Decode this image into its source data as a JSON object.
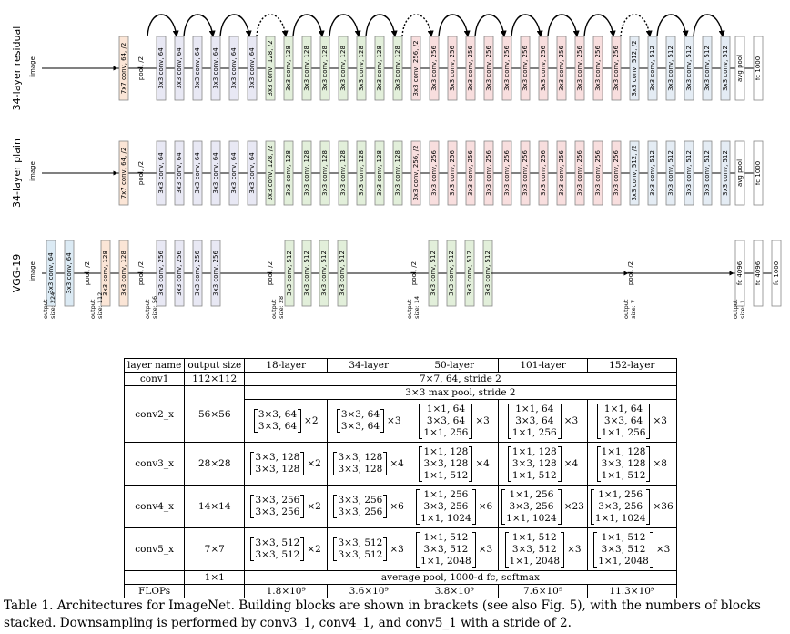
{
  "figure": {
    "labels": {
      "residual": "34-layer residual",
      "plain": "34-layer plain",
      "vgg": "VGG-19",
      "image": "image"
    },
    "residual_layers": [
      "7x7 conv, 64, /2",
      "pool, /2",
      "3x3 conv, 64",
      "3x3 conv, 64",
      "3x3 conv, 64",
      "3x3 conv, 64",
      "3x3 conv, 64",
      "3x3 conv, 64",
      "3x3 conv, 128, /2",
      "3x3 conv, 128",
      "3x3 conv, 128",
      "3x3 conv, 128",
      "3x3 conv, 128",
      "3x3 conv, 128",
      "3x3 conv, 128",
      "3x3 conv, 128",
      "3x3 conv, 256, /2",
      "3x3 conv, 256",
      "3x3 conv, 256",
      "3x3 conv, 256",
      "3x3 conv, 256",
      "3x3 conv, 256",
      "3x3 conv, 256",
      "3x3 conv, 256",
      "3x3 conv, 256",
      "3x3 conv, 256",
      "3x3 conv, 256",
      "3x3 conv, 256",
      "3x3 conv, 512, /2",
      "3x3 conv, 512",
      "3x3 conv, 512",
      "3x3 conv, 512",
      "3x3 conv, 512",
      "3x3 conv, 512",
      "avg pool",
      "fc 1000"
    ],
    "plain_layers": [
      "7x7 conv, 64, /2",
      "pool, /2",
      "3x3 conv, 64",
      "3x3 conv, 64",
      "3x3 conv, 64",
      "3x3 conv, 64",
      "3x3 conv, 64",
      "3x3 conv, 64",
      "3x3 conv, 128, /2",
      "3x3 conv, 128",
      "3x3 conv, 128",
      "3x3 conv, 128",
      "3x3 conv, 128",
      "3x3 conv, 128",
      "3x3 conv, 128",
      "3x3 conv, 128",
      "3x3 conv, 256, /2",
      "3x3 conv, 256",
      "3x3 conv, 256",
      "3x3 conv, 256",
      "3x3 conv, 256",
      "3x3 conv, 256",
      "3x3 conv, 256",
      "3x3 conv, 256",
      "3x3 conv, 256",
      "3x3 conv, 256",
      "3x3 conv, 256",
      "3x3 conv, 256",
      "3x3 conv, 512, /2",
      "3x3 conv, 512",
      "3x3 conv, 512",
      "3x3 conv, 512",
      "3x3 conv, 512",
      "3x3 conv, 512",
      "avg pool",
      "fc 1000"
    ],
    "vgg_layers": [
      "3x3 conv, 64",
      "3x3 conv, 64",
      "pool, /2",
      "3x3 conv, 128",
      "3x3 conv, 128",
      "pool, /2",
      "3x3 conv, 256",
      "3x3 conv, 256",
      "3x3 conv, 256",
      "3x3 conv, 256",
      "pool, /2",
      "3x3 conv, 512",
      "3x3 conv, 512",
      "3x3 conv, 512",
      "3x3 conv, 512",
      "pool, /2",
      "3x3 conv, 512",
      "3x3 conv, 512",
      "3x3 conv, 512",
      "3x3 conv, 512",
      "pool, /2",
      "fc 4096",
      "fc 4096",
      "fc 1000"
    ],
    "output_sizes": [
      {
        "label": "output",
        "size": "size: 224"
      },
      {
        "label": "output",
        "size": "size: 112"
      },
      {
        "label": "output",
        "size": "size: 56"
      },
      {
        "label": "output",
        "size": "size: 28"
      },
      {
        "label": "output",
        "size": "size: 14"
      },
      {
        "label": "output",
        "size": "size: 7"
      },
      {
        "label": "output",
        "size": "size: 1"
      }
    ],
    "colors": {
      "conv1": "#fbe5d6",
      "conv64": "#e8e8f4",
      "conv128": "#e2efda",
      "conv256": "#f8dede",
      "conv512": "#e4ecf4",
      "vgg64": "#dbeaf4",
      "other": "#ffffff"
    }
  },
  "table": {
    "header": {
      "layer_name": "layer name",
      "output_size": "output size",
      "cols": [
        "18-layer",
        "34-layer",
        "50-layer",
        "101-layer",
        "152-layer"
      ]
    },
    "conv1": {
      "name": "conv1",
      "size": "112×112",
      "spec": "7×7, 64, stride 2"
    },
    "maxpool": "3×3 max pool, stride 2",
    "rows": [
      {
        "name": "conv2_x",
        "size": "56×56",
        "cells": [
          {
            "lines": [
              "3×3, 64",
              "3×3, 64"
            ],
            "mult": "×2"
          },
          {
            "lines": [
              "3×3, 64",
              "3×3, 64"
            ],
            "mult": "×3"
          },
          {
            "lines": [
              "1×1, 64",
              "3×3, 64",
              "1×1, 256"
            ],
            "mult": "×3"
          },
          {
            "lines": [
              "1×1, 64",
              "3×3, 64",
              "1×1, 256"
            ],
            "mult": "×3"
          },
          {
            "lines": [
              "1×1, 64",
              "3×3, 64",
              "1×1, 256"
            ],
            "mult": "×3"
          }
        ]
      },
      {
        "name": "conv3_x",
        "size": "28×28",
        "cells": [
          {
            "lines": [
              "3×3, 128",
              "3×3, 128"
            ],
            "mult": "×2"
          },
          {
            "lines": [
              "3×3, 128",
              "3×3, 128"
            ],
            "mult": "×4"
          },
          {
            "lines": [
              "1×1, 128",
              "3×3, 128",
              "1×1, 512"
            ],
            "mult": "×4"
          },
          {
            "lines": [
              "1×1, 128",
              "3×3, 128",
              "1×1, 512"
            ],
            "mult": "×4"
          },
          {
            "lines": [
              "1×1, 128",
              "3×3, 128",
              "1×1, 512"
            ],
            "mult": "×8"
          }
        ]
      },
      {
        "name": "conv4_x",
        "size": "14×14",
        "cells": [
          {
            "lines": [
              "3×3, 256",
              "3×3, 256"
            ],
            "mult": "×2"
          },
          {
            "lines": [
              "3×3, 256",
              "3×3, 256"
            ],
            "mult": "×6"
          },
          {
            "lines": [
              "1×1, 256",
              "3×3, 256",
              "1×1, 1024"
            ],
            "mult": "×6"
          },
          {
            "lines": [
              "1×1, 256",
              "3×3, 256",
              "1×1, 1024"
            ],
            "mult": "×23"
          },
          {
            "lines": [
              "1×1, 256",
              "3×3, 256",
              "1×1, 1024"
            ],
            "mult": "×36"
          }
        ]
      },
      {
        "name": "conv5_x",
        "size": "7×7",
        "cells": [
          {
            "lines": [
              "3×3, 512",
              "3×3, 512"
            ],
            "mult": "×2"
          },
          {
            "lines": [
              "3×3, 512",
              "3×3, 512"
            ],
            "mult": "×3"
          },
          {
            "lines": [
              "1×1, 512",
              "3×3, 512",
              "1×1, 2048"
            ],
            "mult": "×3"
          },
          {
            "lines": [
              "1×1, 512",
              "3×3, 512",
              "1×1, 2048"
            ],
            "mult": "×3"
          },
          {
            "lines": [
              "1×1, 512",
              "3×3, 512",
              "1×1, 2048"
            ],
            "mult": "×3"
          }
        ]
      }
    ],
    "final": {
      "size": "1×1",
      "spec": "average pool, 1000-d fc, softmax"
    },
    "flops": {
      "label": "FLOPs",
      "values": [
        "1.8×10⁹",
        "3.6×10⁹",
        "3.8×10⁹",
        "7.6×10⁹",
        "11.3×10⁹"
      ]
    }
  },
  "caption": "Table 1. Architectures for ImageNet. Building blocks are shown in brackets (see also Fig. 5), with the numbers of blocks stacked. Downsampling is performed by conv3_1, conv4_1, and conv5_1 with a stride of 2."
}
